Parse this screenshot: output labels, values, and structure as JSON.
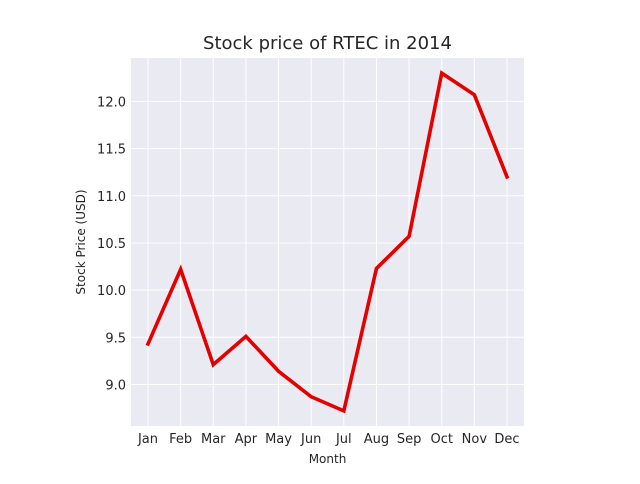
{
  "chart_data": {
    "type": "line",
    "title": "Stock price of RTEC in 2014",
    "xlabel": "Month",
    "ylabel": "Stock Price (USD)",
    "categories": [
      "Jan",
      "Feb",
      "Mar",
      "Apr",
      "May",
      "Jun",
      "Jul",
      "Aug",
      "Sep",
      "Oct",
      "Nov",
      "Dec"
    ],
    "series": [
      {
        "values": [
          9.43,
          10.22,
          9.21,
          9.51,
          9.14,
          8.87,
          8.72,
          10.23,
          10.57,
          12.3,
          12.07,
          11.2
        ],
        "color": "#e50000"
      }
    ],
    "yticks": [
      "9.0",
      "9.5",
      "10.0",
      "10.5",
      "11.0",
      "11.5",
      "12.0"
    ],
    "ylim": [
      8.56,
      12.46
    ],
    "grid": true,
    "background": "#eaeaf2",
    "grid_color": "#ffffff"
  }
}
